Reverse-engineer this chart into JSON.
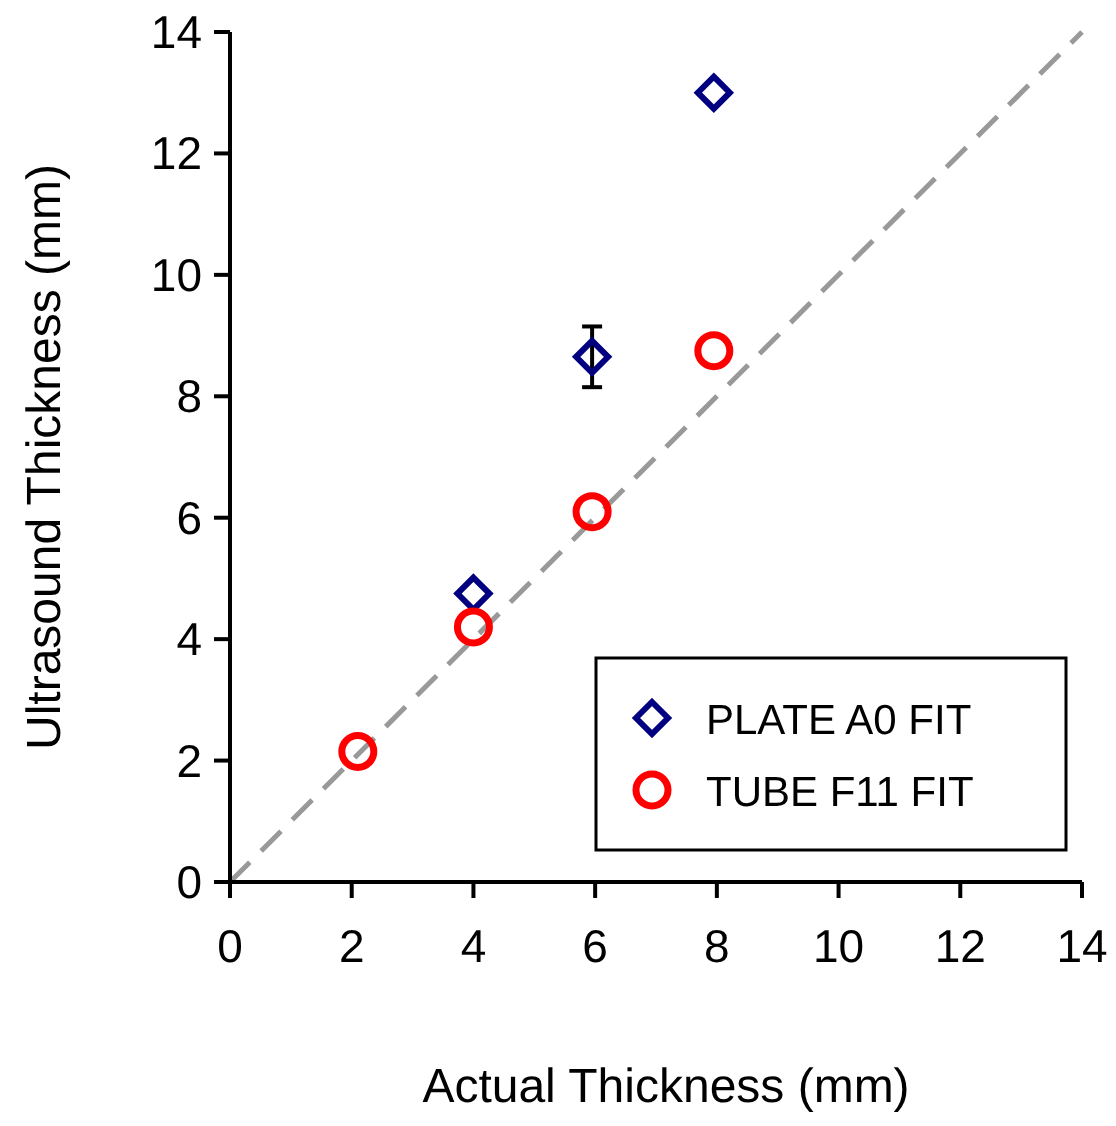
{
  "chart_data": {
    "type": "scatter",
    "xlabel": "Actual Thickness (mm)",
    "ylabel": "Ultrasound Thickness (mm)",
    "xlim": [
      0,
      14
    ],
    "ylim": [
      0,
      14
    ],
    "xticks": [
      0,
      2,
      4,
      6,
      8,
      10,
      12,
      14
    ],
    "yticks": [
      0,
      2,
      4,
      6,
      8,
      10,
      12,
      14
    ],
    "grid": false,
    "legend": "bottom right",
    "series": [
      {
        "type": "line",
        "x": [
          0,
          14
        ],
        "values": [
          0,
          14
        ],
        "color": "#999999",
        "line_style": "dashed",
        "marker": "none"
      },
      {
        "name": "PLATE A0 FIT",
        "color": "#000080",
        "marker": "diamond",
        "x": [
          4,
          5.95,
          7.95
        ],
        "values": [
          4.75,
          8.65,
          13.0
        ],
        "errors": [
          null,
          0.5,
          null
        ]
      },
      {
        "name": "TUBE F11 FIT",
        "color": "#ff0000",
        "marker": "circle",
        "x": [
          2.1,
          4,
          5.95,
          7.95
        ],
        "values": [
          2.15,
          4.2,
          6.1,
          8.75
        ]
      }
    ]
  }
}
